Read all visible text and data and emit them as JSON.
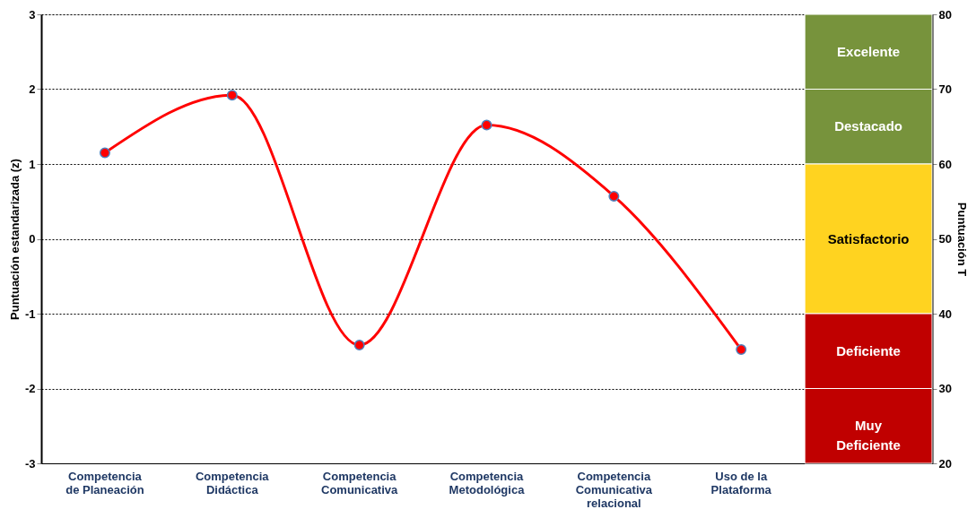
{
  "chart_data": {
    "type": "line",
    "categories": [
      "Competencia de Planeación",
      "Competencia Didáctica",
      "Competencia Comunicativa",
      "Competencia Metodológica",
      "Competencia Comunicativa relacional",
      "Uso de la Plataforma",
      null
    ],
    "series": [
      {
        "color": "#ff0000",
        "values": [
          1.15,
          1.92,
          -1.42,
          1.52,
          0.57,
          -1.48,
          null
        ]
      }
    ],
    "ylabel": "Puntuación estandarizada  (z)",
    "y2label": "Puntuación T",
    "ylim": [
      -3,
      3
    ],
    "yticks": [
      -3,
      -2,
      -1,
      0,
      1,
      2,
      3
    ],
    "y2lim": [
      20,
      80
    ],
    "y2ticks": [
      20,
      30,
      40,
      50,
      60,
      70,
      80
    ],
    "bands": [
      {
        "axis": "y",
        "from": 2,
        "to": 3,
        "label": "Excelente",
        "color": "#77933c"
      },
      {
        "axis": "y",
        "from": 1,
        "to": 2,
        "label": "Destacado",
        "color": "#77933c"
      },
      {
        "axis": "y",
        "from": -1,
        "to": 1,
        "label": "Satisfactorio",
        "color": "#ffd320"
      },
      {
        "axis": "y",
        "from": -2,
        "to": -1,
        "label": "Deficiente",
        "color": "#c00000"
      },
      {
        "axis": "y",
        "from": -3,
        "to": -2,
        "label": "Muy Deficiente",
        "color": "#c00000"
      }
    ],
    "grid": true,
    "marker": "circle",
    "line_style": "solid"
  }
}
